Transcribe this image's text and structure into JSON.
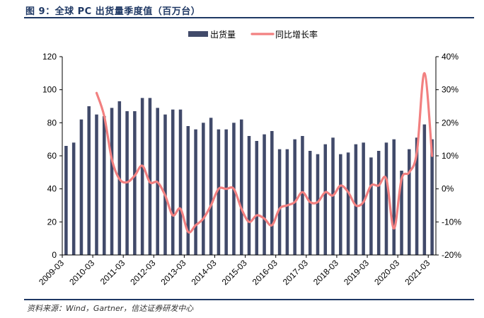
{
  "figure": {
    "title": "图 9：全球 PC 出货量季度值（百万台）",
    "source": "资料来源：Wind，Gartner，信达证券研发中心"
  },
  "chart_data": {
    "type": "bar+line",
    "title": "全球 PC 出货量季度值（百万台）",
    "legend_position": "top-center",
    "colors": {
      "bar": "#414a6a",
      "line": "#f28080",
      "text": "#1f3864"
    },
    "x_tick_labels": [
      "2009-03",
      "2010-03",
      "2011-03",
      "2012-03",
      "2013-03",
      "2014-03",
      "2015-03",
      "2016-03",
      "2017-03",
      "2018-03",
      "2019-03",
      "2020-03",
      "2021-03"
    ],
    "x_tick_start_indices": [
      0,
      4,
      8,
      12,
      16,
      20,
      24,
      28,
      32,
      36,
      40,
      44,
      48
    ],
    "left_axis": {
      "min": 0,
      "max": 120,
      "step": 20,
      "labels": [
        "0",
        "20",
        "40",
        "60",
        "80",
        "100",
        "120"
      ]
    },
    "right_axis": {
      "min": -20,
      "max": 40,
      "step": 10,
      "labels": [
        "-20%",
        "-10%",
        "0%",
        "10%",
        "20%",
        "30%",
        "40%"
      ]
    },
    "series": [
      {
        "name": "出货量",
        "type": "bar",
        "axis": "left",
        "values": [
          66,
          68,
          82,
          90,
          85,
          84,
          89,
          93,
          87,
          87,
          95,
          95,
          89,
          85,
          88,
          88,
          78,
          76,
          80,
          83,
          76,
          76,
          80,
          82,
          72,
          69,
          73,
          75,
          64,
          64,
          70,
          72,
          63,
          61,
          67,
          71,
          61,
          62,
          67,
          68,
          59,
          63,
          68,
          70,
          51,
          64,
          71,
          79,
          70
        ]
      },
      {
        "name": "同比增长率",
        "type": "line",
        "axis": "right",
        "values": [
          null,
          null,
          null,
          null,
          29,
          22,
          9,
          3,
          2,
          4,
          7,
          2,
          2,
          -2,
          -8,
          -6,
          -13,
          -11,
          -9,
          -5,
          0,
          0,
          0,
          -6,
          -10,
          -8,
          -9,
          -11,
          -6,
          -5,
          -4,
          -1,
          -4,
          -4,
          -1,
          -2,
          1,
          -1,
          -5,
          -4,
          1,
          1,
          3,
          -12,
          3,
          5,
          11,
          35,
          10
        ]
      }
    ]
  }
}
